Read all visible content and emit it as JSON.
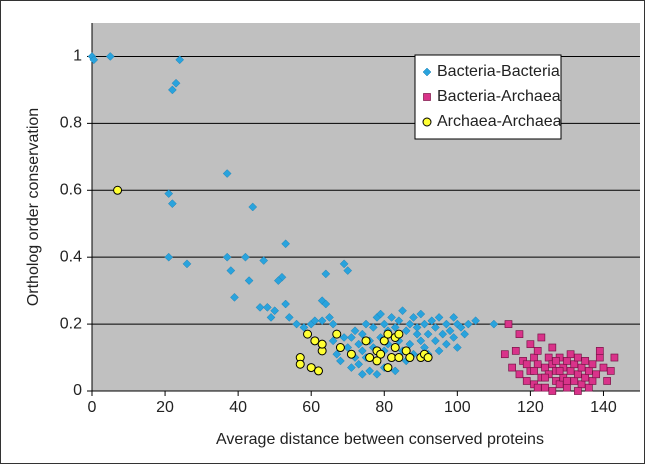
{
  "chart_data": {
    "type": "scatter",
    "x_label": "Average distance between conserved proteins",
    "y_label": "Ortholog order conservation",
    "xlim": [
      0,
      150
    ],
    "xticks": [
      0,
      20,
      40,
      60,
      80,
      100,
      120,
      140
    ],
    "ylim": [
      0,
      1.1
    ],
    "yticks": [
      0,
      0.2,
      0.4,
      0.6,
      0.8,
      1
    ],
    "grid": true,
    "legend": "upper right",
    "series": [
      {
        "name": "Bacteria-Bacteria",
        "color": "#29a3dd",
        "marker": "diamond",
        "x": [
          0,
          0.5,
          5,
          22,
          23,
          24,
          37,
          44,
          21,
          22,
          21,
          26,
          37,
          38,
          42,
          43,
          39,
          47,
          53,
          52,
          51,
          46,
          48,
          49,
          50,
          53,
          54,
          56,
          63,
          64,
          64,
          69,
          70,
          65,
          66,
          60,
          61,
          58,
          63,
          70,
          71,
          72,
          72,
          73,
          73,
          74,
          74,
          75,
          75,
          76,
          76,
          77,
          77,
          78,
          78,
          79,
          79,
          80,
          80,
          80,
          81,
          81,
          82,
          82,
          83,
          83,
          84,
          84,
          85,
          85,
          86,
          86,
          87,
          87,
          88,
          88,
          89,
          89,
          90,
          90,
          91,
          91,
          92,
          92,
          93,
          94,
          94,
          95,
          95,
          96,
          97,
          97,
          98,
          99,
          99,
          100,
          100,
          101,
          102,
          103,
          105,
          110,
          68,
          69,
          71,
          74,
          78,
          66,
          67
        ],
        "values": [
          1,
          0.99,
          1,
          0.9,
          0.92,
          0.99,
          0.65,
          0.55,
          0.59,
          0.56,
          0.4,
          0.38,
          0.4,
          0.36,
          0.4,
          0.33,
          0.28,
          0.39,
          0.44,
          0.34,
          0.33,
          0.25,
          0.25,
          0.22,
          0.24,
          0.26,
          0.22,
          0.2,
          0.27,
          0.26,
          0.35,
          0.38,
          0.36,
          0.22,
          0.2,
          0.2,
          0.21,
          0.19,
          0.21,
          0.13,
          0.16,
          0.1,
          0.18,
          0.14,
          0.08,
          0.17,
          0.12,
          0.2,
          0.1,
          0.15,
          0.06,
          0.19,
          0.13,
          0.22,
          0.09,
          0.16,
          0.23,
          0.12,
          0.2,
          0.07,
          0.18,
          0.14,
          0.22,
          0.1,
          0.19,
          0.06,
          0.21,
          0.15,
          0.12,
          0.24,
          0.18,
          0.09,
          0.2,
          0.14,
          0.22,
          0.11,
          0.17,
          0.19,
          0.15,
          0.23,
          0.13,
          0.2,
          0.17,
          0.11,
          0.21,
          0.15,
          0.19,
          0.12,
          0.22,
          0.17,
          0.2,
          0.14,
          0.18,
          0.22,
          0.16,
          0.2,
          0.13,
          0.19,
          0.17,
          0.2,
          0.21,
          0.2,
          0.09,
          0.16,
          0.07,
          0.05,
          0.05,
          0.15,
          0.11
        ]
      },
      {
        "name": "Bacteria-Archaea",
        "color": "#d9338a",
        "marker": "square",
        "x": [
          113,
          114,
          115,
          116,
          117,
          117,
          118,
          119,
          120,
          120,
          121,
          121,
          122,
          122,
          123,
          123,
          124,
          124,
          125,
          125,
          126,
          126,
          127,
          127,
          128,
          128,
          129,
          129,
          130,
          130,
          131,
          131,
          132,
          132,
          133,
          133,
          134,
          134,
          135,
          135,
          136,
          136,
          137,
          137,
          138,
          139,
          140,
          141,
          142,
          143,
          139,
          122,
          126,
          130,
          128,
          124,
          127,
          133,
          119,
          121
        ],
        "values": [
          0.11,
          0.2,
          0.07,
          0.12,
          0.05,
          0.17,
          0.09,
          0.03,
          0.14,
          0.06,
          0.1,
          0.02,
          0.08,
          0.12,
          0.04,
          0.16,
          0.07,
          0.01,
          0.1,
          0.05,
          0.08,
          0.13,
          0.03,
          0.06,
          0.1,
          0.02,
          0.07,
          0.04,
          0.09,
          0.01,
          0.06,
          0.11,
          0.03,
          0.08,
          0.05,
          0.1,
          0.02,
          0.07,
          0.04,
          0.09,
          0.06,
          0.01,
          0.08,
          0.03,
          0.05,
          0.1,
          0.07,
          0.03,
          0.06,
          0.1,
          0.12,
          0.01,
          0,
          0.03,
          0.06,
          0.04,
          0.09,
          0,
          0.08,
          0.06
        ]
      },
      {
        "name": "Archaea-Archaea",
        "color": "#ffff33",
        "marker": "circle",
        "x": [
          7,
          57,
          57,
          59,
          60,
          61,
          62,
          63,
          63,
          67,
          68,
          71,
          75,
          76,
          78,
          79,
          80,
          81,
          81,
          82,
          83,
          83,
          84,
          84,
          86,
          87,
          90,
          91,
          92,
          78
        ],
        "values": [
          0.6,
          0.1,
          0.08,
          0.17,
          0.07,
          0.15,
          0.06,
          0.12,
          0.14,
          0.17,
          0.13,
          0.11,
          0.15,
          0.1,
          0.12,
          0.11,
          0.15,
          0.17,
          0.07,
          0.1,
          0.16,
          0.13,
          0.1,
          0.17,
          0.12,
          0.1,
          0.1,
          0.11,
          0.1,
          0.09
        ]
      }
    ]
  }
}
